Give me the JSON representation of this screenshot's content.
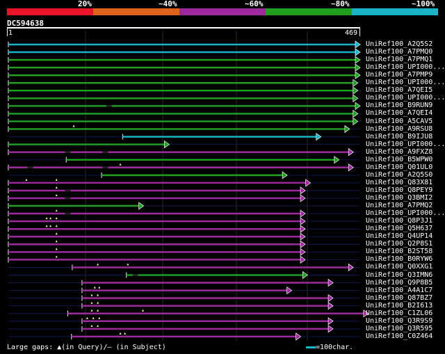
{
  "legend": {
    "percents": [
      "20%",
      "~40%",
      "~60%",
      "~80%",
      "~100%"
    ],
    "colors": [
      "#e8142a",
      "#e0631a",
      "#9c2a9c",
      "#1f9e1f",
      "#1ab3c8"
    ]
  },
  "query": {
    "id": "DC594638",
    "start": "1",
    "end": "469",
    "length": 469
  },
  "hits": [
    {
      "label": "UniRef100_A2Q5S2",
      "s": 1,
      "e": 469,
      "c": 4,
      "ins": [],
      "dash": []
    },
    {
      "label": "UniRef100_A7PMQ0",
      "s": 1,
      "e": 469,
      "c": 4,
      "ins": [],
      "dash": []
    },
    {
      "label": "UniRef100_A7PMQ1",
      "s": 1,
      "e": 469,
      "c": 3,
      "ins": [],
      "dash": []
    },
    {
      "label": "UniRef100_UPI000...",
      "s": 1,
      "e": 469,
      "c": 3,
      "ins": [],
      "dash": []
    },
    {
      "label": "UniRef100_A7PMP9",
      "s": 1,
      "e": 469,
      "c": 3,
      "ins": [],
      "dash": []
    },
    {
      "label": "UniRef100_UPI000...",
      "s": 1,
      "e": 466,
      "c": 3,
      "ins": [],
      "dash": []
    },
    {
      "label": "UniRef100_A7QEI5",
      "s": 1,
      "e": 466,
      "c": 3,
      "ins": [],
      "dash": []
    },
    {
      "label": "UniRef100_UPI000...",
      "s": 1,
      "e": 466,
      "c": 3,
      "ins": [],
      "dash": []
    },
    {
      "label": "UniRef100_B9RUN9",
      "s": 1,
      "e": 469,
      "c": 3,
      "ins": [],
      "dash": [
        135
      ]
    },
    {
      "label": "UniRef100_A7QEI4",
      "s": 1,
      "e": 466,
      "c": 3,
      "ins": [],
      "dash": []
    },
    {
      "label": "UniRef100_A5CAV5",
      "s": 1,
      "e": 466,
      "c": 3,
      "ins": [],
      "dash": []
    },
    {
      "label": "UniRef100_A9RSU8",
      "s": 1,
      "e": 455,
      "c": 3,
      "ins": [
        88
      ],
      "dash": []
    },
    {
      "label": "UniRef100_B9IJU8",
      "s": 153,
      "e": 417,
      "c": 4,
      "ins": [],
      "dash": []
    },
    {
      "label": "UniRef100_UPI000...",
      "s": 1,
      "e": 215,
      "c": 3,
      "ins": [],
      "dash": []
    },
    {
      "label": "UniRef100_A9FXZ8",
      "s": 1,
      "e": 460,
      "c": 2,
      "ins": [],
      "dash": [
        80,
        130
      ]
    },
    {
      "label": "UniRef100_B5WPW0",
      "s": 78,
      "e": 441,
      "c": 3,
      "ins": [],
      "dash": []
    },
    {
      "label": "UniRef100_Q01UL0",
      "s": 1,
      "e": 460,
      "c": 2,
      "ins": [
        150
      ],
      "dash": [
        30,
        130
      ]
    },
    {
      "label": "UniRef100_A2Q5S0",
      "s": 125,
      "e": 372,
      "c": 3,
      "ins": [],
      "dash": []
    },
    {
      "label": "UniRef100_Q83X81",
      "s": 1,
      "e": 403,
      "c": 2,
      "ins": [
        25,
        65
      ],
      "dash": []
    },
    {
      "label": "UniRef100_Q8PEY9",
      "s": 1,
      "e": 396,
      "c": 2,
      "ins": [
        65
      ],
      "dash": [
        80
      ]
    },
    {
      "label": "UniRef100_Q3BMI2",
      "s": 1,
      "e": 396,
      "c": 2,
      "ins": [
        65
      ],
      "dash": [
        80
      ]
    },
    {
      "label": "UniRef100_A7PMQ2",
      "s": 1,
      "e": 181,
      "c": 3,
      "ins": [],
      "dash": []
    },
    {
      "label": "UniRef100_UPI000...",
      "s": 1,
      "e": 396,
      "c": 2,
      "ins": [
        65
      ],
      "dash": [
        80
      ]
    },
    {
      "label": "UniRef100_Q8P3J1",
      "s": 1,
      "e": 396,
      "c": 2,
      "ins": [
        52,
        57,
        65
      ],
      "dash": []
    },
    {
      "label": "UniRef100_Q5H637",
      "s": 1,
      "e": 396,
      "c": 2,
      "ins": [
        52,
        57,
        65
      ],
      "dash": []
    },
    {
      "label": "UniRef100_Q4UP14",
      "s": 1,
      "e": 396,
      "c": 2,
      "ins": [
        65
      ],
      "dash": []
    },
    {
      "label": "UniRef100_Q2P8S1",
      "s": 1,
      "e": 396,
      "c": 2,
      "ins": [
        65
      ],
      "dash": []
    },
    {
      "label": "UniRef100_B2ST58",
      "s": 1,
      "e": 396,
      "c": 2,
      "ins": [
        65
      ],
      "dash": []
    },
    {
      "label": "UniRef100_B0RYW6",
      "s": 1,
      "e": 396,
      "c": 2,
      "ins": [
        65
      ],
      "dash": []
    },
    {
      "label": "UniRef100_Q0XXG1",
      "s": 86,
      "e": 460,
      "c": 2,
      "ins": [
        120,
        160
      ],
      "dash": []
    },
    {
      "label": "UniRef100_Q3IMN6",
      "s": 158,
      "e": 399,
      "c": 3,
      "ins": [],
      "dash": [
        170
      ]
    },
    {
      "label": "UniRef100_Q9P8B5",
      "s": 99,
      "e": 433,
      "c": 2,
      "ins": [],
      "dash": []
    },
    {
      "label": "UniRef100_A4A1C7",
      "s": 99,
      "e": 378,
      "c": 2,
      "ins": [
        116,
        122
      ],
      "dash": []
    },
    {
      "label": "UniRef100_Q87BZ7",
      "s": 99,
      "e": 433,
      "c": 2,
      "ins": [
        112,
        120
      ],
      "dash": []
    },
    {
      "label": "UniRef100_B2I613",
      "s": 99,
      "e": 433,
      "c": 2,
      "ins": [
        112,
        120
      ],
      "dash": []
    },
    {
      "label": "UniRef100_C1ZL06",
      "s": 80,
      "e": 480,
      "c": 2,
      "ins": [
        112,
        120,
        180
      ],
      "dash": []
    },
    {
      "label": "UniRef100_Q3R9S9",
      "s": 99,
      "e": 433,
      "c": 2,
      "ins": [
        106,
        114,
        122
      ],
      "dash": []
    },
    {
      "label": "UniRef100_Q3R595",
      "s": 99,
      "e": 433,
      "c": 2,
      "ins": [
        112,
        120
      ],
      "dash": []
    },
    {
      "label": "UniRef100_C0Z464",
      "s": 85,
      "e": 390,
      "c": 2,
      "ins": [
        150,
        156
      ],
      "dash": []
    }
  ],
  "footer": {
    "text": "Large gaps: ▲(in Query)/– (in Subject)",
    "scale_text": "=100char."
  }
}
